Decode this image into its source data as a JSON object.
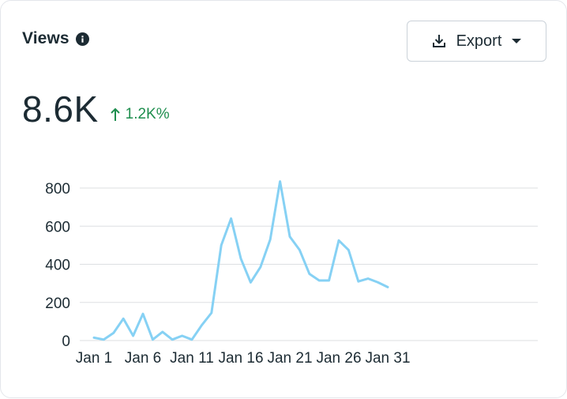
{
  "header": {
    "title": "Views",
    "info_icon": "info-icon"
  },
  "export": {
    "label": "Export",
    "icons": [
      "download-icon",
      "caret-down-icon"
    ]
  },
  "metric": {
    "value": "8.6K",
    "delta": "1.2K%",
    "delta_direction": "up",
    "delta_color": "#1e8e4e"
  },
  "colors": {
    "line": "#86d1f4",
    "grid": "#dddfe2",
    "text": "#1c2b33"
  },
  "chart_data": {
    "type": "line",
    "x_tick_labels": [
      "Jan 1",
      "Jan 6",
      "Jan 11",
      "Jan 16",
      "Jan 21",
      "Jan 26",
      "Jan 31"
    ],
    "y_ticks": [
      0,
      200,
      400,
      600,
      800
    ],
    "ylim": [
      0,
      800
    ],
    "grid": true,
    "series": [
      {
        "values": [
          15,
          5,
          40,
          115,
          25,
          140,
          5,
          45,
          5,
          25,
          5,
          80,
          145,
          500,
          640,
          430,
          305,
          385,
          530,
          835,
          545,
          475,
          350,
          315,
          315,
          525,
          475,
          310,
          325,
          305,
          280
        ]
      }
    ]
  }
}
